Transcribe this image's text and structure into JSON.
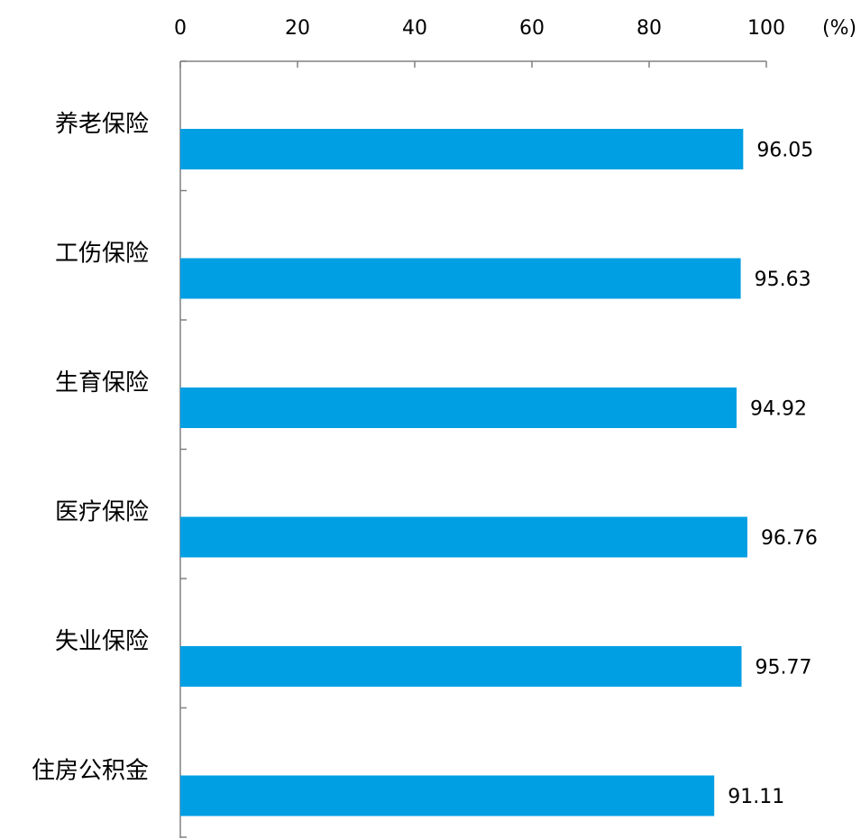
{
  "chart_data": {
    "type": "bar",
    "orientation": "horizontal",
    "categories": [
      "养老保险",
      "工伤保险",
      "生育保险",
      "医疗保险",
      "失业保险",
      "住房公积金"
    ],
    "values": [
      96.05,
      95.63,
      94.92,
      96.76,
      95.77,
      91.11
    ],
    "value_labels": [
      "96.05",
      "95.63",
      "94.92",
      "96.76",
      "95.77",
      "91.11"
    ],
    "xlim": [
      0,
      100
    ],
    "x_ticks": [
      "0",
      "20",
      "40",
      "60",
      "80",
      "100"
    ],
    "x_axis_position": "top",
    "unit": "(%)",
    "bar_color": "#009FE3",
    "grid": false,
    "legend": "none"
  }
}
